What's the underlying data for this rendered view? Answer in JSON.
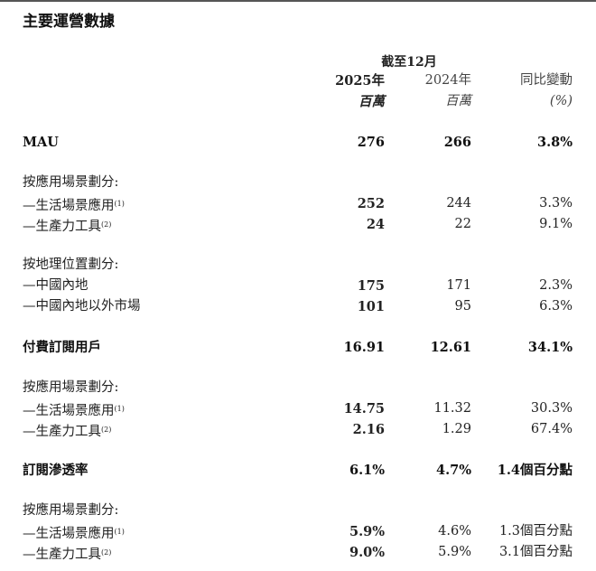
{
  "title": "主要運營數據",
  "period": "截至12月",
  "header": {
    "col1": "2025年",
    "col2": "2024年",
    "col3": "同比變動"
  },
  "units": {
    "col1": "百萬",
    "col2": "百萬",
    "col3": "(%)"
  },
  "rows": [
    {
      "kind": "bold",
      "label": "MAU",
      "v2025": "276",
      "v2024": "266",
      "change": "3.8%"
    },
    {
      "kind": "group",
      "label": "按應用場景劃分:"
    },
    {
      "kind": "item",
      "label": "—生活場景應用",
      "note": "(1)",
      "v2025": "252",
      "v2024": "244",
      "change": "3.3%"
    },
    {
      "kind": "item",
      "label": "—生產力工具",
      "note": "(2)",
      "v2025": "24",
      "v2024": "22",
      "change": "9.1%"
    },
    {
      "kind": "group",
      "label": "按地理位置劃分:"
    },
    {
      "kind": "item",
      "label": "—中國內地",
      "v2025": "175",
      "v2024": "171",
      "change": "2.3%"
    },
    {
      "kind": "item",
      "label": "—中國內地以外市場",
      "v2025": "101",
      "v2024": "95",
      "change": "6.3%"
    },
    {
      "kind": "bold",
      "label": "付費訂閱用戶",
      "v2025": "16.91",
      "v2024": "12.61",
      "change": "34.1%"
    },
    {
      "kind": "group",
      "label": "按應用場景劃分:"
    },
    {
      "kind": "item",
      "label": "—生活場景應用",
      "note": "(1)",
      "v2025": "14.75",
      "v2024": "11.32",
      "change": "30.3%"
    },
    {
      "kind": "item",
      "label": "—生產力工具",
      "note": "(2)",
      "v2025": "2.16",
      "v2024": "1.29",
      "change": "67.4%"
    },
    {
      "kind": "bold",
      "label": "訂閱滲透率",
      "v2025": "6.1%",
      "v2024": "4.7%",
      "change": "1.4個百分點"
    },
    {
      "kind": "group",
      "label": "按應用場景劃分:"
    },
    {
      "kind": "item",
      "label": "—生活場景應用",
      "note": "(1)",
      "v2025": "5.9%",
      "v2024": "4.6%",
      "change": "1.3個百分點"
    },
    {
      "kind": "item",
      "label": "—生產力工具",
      "note": "(2)",
      "v2025": "9.0%",
      "v2024": "5.9%",
      "change": "3.1個百分點"
    }
  ]
}
